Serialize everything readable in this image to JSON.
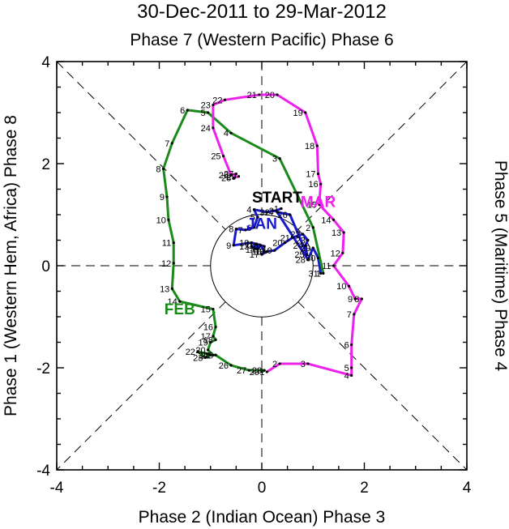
{
  "chart_data": {
    "type": "line",
    "title": "30-Dec-2011 to 29-Mar-2012",
    "subtitle": "Phase 7 (Western Pacific) Phase 6",
    "xlabel": "Phase 2 (Indian Ocean) Phase 3",
    "ylabel_left": "Phase 1 (Western Hem, Africa) Phase 8",
    "ylabel_right": "Phase 5 (Maritime) Phase 4",
    "xlim": [
      -4,
      4
    ],
    "ylim": [
      -4,
      4
    ],
    "xticks": [
      "-4",
      "-2",
      "0",
      "2",
      "4"
    ],
    "yticks": [
      "-4",
      "-2",
      "0",
      "2",
      "4"
    ],
    "unit_circle_radius": 1,
    "start_label": "START",
    "start_point": [
      0.3,
      1.35
    ],
    "series": [
      {
        "name": "JAN",
        "color": "#1a1acd",
        "month_label_at": [
          0.0,
          0.72
        ],
        "points": [
          {
            "d": "1",
            "x": 0.38,
            "y": 1.12
          },
          {
            "d": "2",
            "x": 0.28,
            "y": 1.08
          },
          {
            "d": "3",
            "x": 0.1,
            "y": 1.05
          },
          {
            "d": "4",
            "x": -0.15,
            "y": 1.1
          },
          {
            "d": "5",
            "x": -0.08,
            "y": 0.95
          },
          {
            "d": "6",
            "x": -0.15,
            "y": 0.75
          },
          {
            "d": "7",
            "x": -0.32,
            "y": 0.7
          },
          {
            "d": "8",
            "x": -0.5,
            "y": 0.72
          },
          {
            "d": "9",
            "x": -0.55,
            "y": 0.4
          },
          {
            "d": "10",
            "x": -0.2,
            "y": 0.45
          },
          {
            "d": "11",
            "x": -0.1,
            "y": 0.42
          },
          {
            "d": "12",
            "x": 0.05,
            "y": 0.38
          },
          {
            "d": "13",
            "x": -0.2,
            "y": 0.38
          },
          {
            "d": "14",
            "x": -0.08,
            "y": 0.32
          },
          {
            "d": "15",
            "x": -0.02,
            "y": 0.4
          },
          {
            "d": "16",
            "x": 0.05,
            "y": 0.28
          },
          {
            "d": "17",
            "x": 0.0,
            "y": 0.22
          },
          {
            "d": "18",
            "x": 0.1,
            "y": 0.28
          },
          {
            "d": "19",
            "x": 0.25,
            "y": 0.3
          },
          {
            "d": "20",
            "x": 0.45,
            "y": 0.45
          },
          {
            "d": "21",
            "x": 0.6,
            "y": 0.55
          },
          {
            "d": "22",
            "x": 0.8,
            "y": 0.62
          },
          {
            "d": "23",
            "x": 0.9,
            "y": 0.5
          },
          {
            "d": "24",
            "x": 0.85,
            "y": 0.4
          },
          {
            "d": "25",
            "x": 0.88,
            "y": 0.22
          },
          {
            "d": "26",
            "x": 0.55,
            "y": 1.0
          },
          {
            "d": "27",
            "x": 0.3,
            "y": 1.05
          },
          {
            "d": "28",
            "x": 0.9,
            "y": 0.12
          },
          {
            "d": "29",
            "x": 1.0,
            "y": 0.35
          },
          {
            "d": "30",
            "x": 1.1,
            "y": 0.15
          },
          {
            "d": "31",
            "x": 1.15,
            "y": -0.15
          }
        ]
      },
      {
        "name": "FEB",
        "color": "#1a8a1a",
        "month_label_at": [
          -1.6,
          -0.95
        ],
        "points": [
          {
            "d": "1",
            "x": 1.2,
            "y": -0.15
          },
          {
            "d": "2",
            "x": 1.0,
            "y": 0.75
          },
          {
            "d": "3",
            "x": 0.35,
            "y": 2.1
          },
          {
            "d": "4",
            "x": -0.6,
            "y": 2.6
          },
          {
            "d": "5",
            "x": -1.05,
            "y": 3.0
          },
          {
            "d": "6",
            "x": -1.45,
            "y": 3.05
          },
          {
            "d": "7",
            "x": -1.75,
            "y": 2.4
          },
          {
            "d": "8",
            "x": -1.92,
            "y": 1.9
          },
          {
            "d": "9",
            "x": -1.85,
            "y": 1.35
          },
          {
            "d": "10",
            "x": -1.82,
            "y": 0.9
          },
          {
            "d": "11",
            "x": -1.72,
            "y": 0.45
          },
          {
            "d": "12",
            "x": -1.72,
            "y": 0.05
          },
          {
            "d": "13",
            "x": -1.75,
            "y": -0.45
          },
          {
            "d": "14",
            "x": -1.6,
            "y": -0.7
          },
          {
            "d": "15",
            "x": -0.95,
            "y": -0.85
          },
          {
            "d": "16",
            "x": -0.9,
            "y": -1.2
          },
          {
            "d": "17",
            "x": -0.95,
            "y": -1.38
          },
          {
            "d": "18",
            "x": -0.9,
            "y": -1.45
          },
          {
            "d": "19",
            "x": -1.0,
            "y": -1.5
          },
          {
            "d": "20",
            "x": -1.05,
            "y": -1.65
          },
          {
            "d": "21",
            "x": -0.95,
            "y": -1.75
          },
          {
            "d": "22",
            "x": -1.25,
            "y": -1.68
          },
          {
            "d": "23",
            "x": -1.1,
            "y": -1.8
          },
          {
            "d": "24",
            "x": -1.0,
            "y": -1.75
          },
          {
            "d": "25",
            "x": -0.9,
            "y": -1.75
          },
          {
            "d": "26",
            "x": -0.6,
            "y": -1.95
          },
          {
            "d": "27",
            "x": -0.25,
            "y": -2.05
          },
          {
            "d": "28",
            "x": 0.05,
            "y": -2.05
          },
          {
            "d": "29",
            "x": 0.0,
            "y": -2.08
          }
        ]
      },
      {
        "name": "MAR",
        "color": "#ee20ee",
        "month_label_at": [
          1.1,
          1.15
        ],
        "points": [
          {
            "d": "1",
            "x": 0.1,
            "y": -2.08
          },
          {
            "d": "2",
            "x": 0.35,
            "y": -1.92
          },
          {
            "d": "3",
            "x": 0.9,
            "y": -1.92
          },
          {
            "d": "4",
            "x": 1.75,
            "y": -2.15
          },
          {
            "d": "5",
            "x": 1.75,
            "y": -2.0
          },
          {
            "d": "6",
            "x": 1.75,
            "y": -1.55
          },
          {
            "d": "7",
            "x": 1.8,
            "y": -0.95
          },
          {
            "d": "8",
            "x": 1.95,
            "y": -0.65
          },
          {
            "d": "9",
            "x": 1.82,
            "y": -0.65
          },
          {
            "d": "10",
            "x": 1.7,
            "y": -0.4
          },
          {
            "d": "11",
            "x": 1.4,
            "y": 0.0
          },
          {
            "d": "12",
            "x": 1.58,
            "y": 0.25
          },
          {
            "d": "13",
            "x": 1.6,
            "y": 0.65
          },
          {
            "d": "14",
            "x": 1.4,
            "y": 0.9
          },
          {
            "d": "15",
            "x": 1.12,
            "y": 1.2
          },
          {
            "d": "16",
            "x": 1.15,
            "y": 1.6
          },
          {
            "d": "17",
            "x": 1.1,
            "y": 1.8
          },
          {
            "d": "18",
            "x": 1.08,
            "y": 2.35
          },
          {
            "d": "19",
            "x": 0.85,
            "y": 3.0
          },
          {
            "d": "20",
            "x": 0.3,
            "y": 3.35
          },
          {
            "d": "21",
            "x": -0.05,
            "y": 3.35
          },
          {
            "d": "22",
            "x": -0.72,
            "y": 3.25
          },
          {
            "d": "23",
            "x": -0.95,
            "y": 3.15
          },
          {
            "d": "24",
            "x": -0.95,
            "y": 2.7
          },
          {
            "d": "25",
            "x": -0.75,
            "y": 2.15
          },
          {
            "d": "26",
            "x": -0.6,
            "y": 1.78
          },
          {
            "d": "27",
            "x": -0.5,
            "y": 1.8
          },
          {
            "d": "28",
            "x": -0.55,
            "y": 1.72
          },
          {
            "d": "29",
            "x": -0.45,
            "y": 1.75
          }
        ]
      }
    ]
  }
}
